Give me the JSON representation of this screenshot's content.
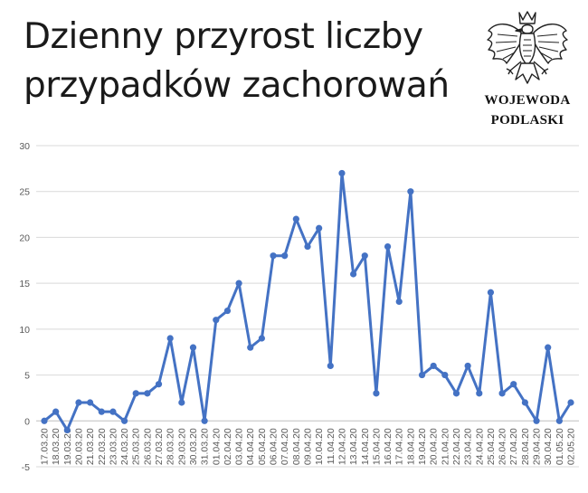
{
  "header": {
    "title_line1": "Dzienny przyrost liczby",
    "title_line2": "przypadków zachorowań"
  },
  "emblem": {
    "icon": "polish-eagle-icon",
    "org_line1": "WOJEWODA",
    "org_line2": "PODLASKI"
  },
  "chart_data": {
    "type": "line",
    "title": "Dzienny przyrost liczby przypadków zachorowań",
    "xlabel": "",
    "ylabel": "",
    "ylim": [
      -5,
      30
    ],
    "yticks": [
      -5,
      0,
      5,
      10,
      15,
      20,
      25,
      30
    ],
    "grid": true,
    "legend": "none",
    "color": "#4472C4",
    "x": [
      "17.03.20",
      "18.03.20",
      "19.03.20",
      "20.03.20",
      "21.03.20",
      "22.03.20",
      "23.03.20",
      "24.03.20",
      "25.03.20",
      "26.03.20",
      "27.03.20",
      "28.03.20",
      "29.03.20",
      "30.03.20",
      "31.03.20",
      "01.04.20",
      "02.04.20",
      "03.04.20",
      "04.04.20",
      "05.04.20",
      "06.04.20",
      "07.04.20",
      "08.04.20",
      "09.04.20",
      "10.04.20",
      "11.04.20",
      "12.04.20",
      "13.04.20",
      "14.04.20",
      "15.04.20",
      "16.04.20",
      "17.04.20",
      "18.04.20",
      "19.04.20",
      "20.04.20",
      "21.04.20",
      "22.04.20",
      "23.04.20",
      "24.04.20",
      "25.04.20",
      "26.04.20",
      "27.04.20",
      "28.04.20",
      "29.04.20",
      "30.04.20",
      "01.05.20",
      "02.05.20"
    ],
    "series": [
      {
        "values": [
          0,
          1,
          -1,
          2,
          2,
          1,
          1,
          0,
          3,
          3,
          4,
          9,
          2,
          8,
          0,
          11,
          12,
          15,
          8,
          9,
          18,
          18,
          22,
          19,
          21,
          6,
          27,
          16,
          18,
          3,
          19,
          13,
          25,
          5,
          6,
          5,
          3,
          6,
          3,
          14,
          3,
          4,
          2,
          0,
          8,
          0,
          2
        ]
      }
    ]
  }
}
